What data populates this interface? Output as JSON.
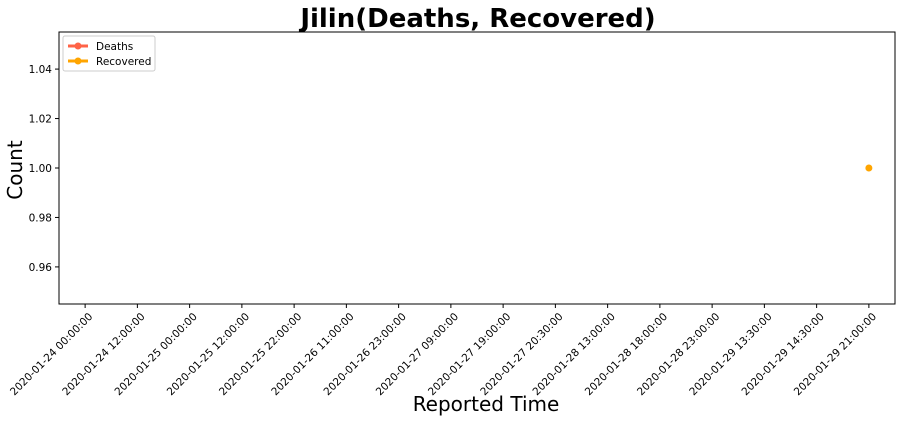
{
  "chart_data": {
    "type": "line",
    "title": "Jilin(Deaths, Recovered)",
    "xlabel": "Reported Time",
    "ylabel": "Count",
    "categories": [
      "2020-01-24 00:00:00",
      "2020-01-24 12:00:00",
      "2020-01-25 00:00:00",
      "2020-01-25 12:00:00",
      "2020-01-25 22:00:00",
      "2020-01-26 11:00:00",
      "2020-01-26 23:00:00",
      "2020-01-27 09:00:00",
      "2020-01-27 19:00:00",
      "2020-01-27 20:30:00",
      "2020-01-28 13:00:00",
      "2020-01-28 18:00:00",
      "2020-01-28 23:00:00",
      "2020-01-29 13:30:00",
      "2020-01-29 14:30:00",
      "2020-01-29 21:00:00"
    ],
    "series": [
      {
        "name": "Deaths",
        "color": "#ff6347",
        "values": [
          null,
          null,
          null,
          null,
          null,
          null,
          null,
          null,
          null,
          null,
          null,
          null,
          null,
          null,
          null,
          null
        ]
      },
      {
        "name": "Recovered",
        "color": "#ffa500",
        "values": [
          null,
          null,
          null,
          null,
          null,
          null,
          null,
          null,
          null,
          null,
          null,
          null,
          null,
          null,
          null,
          1
        ]
      }
    ],
    "ylim": [
      0.945,
      1.055
    ],
    "yticks": [
      0.96,
      0.98,
      1.0,
      1.02,
      1.04
    ],
    "ytick_labels": [
      "0.96",
      "0.98",
      "1.00",
      "1.02",
      "1.04"
    ],
    "xlim_index": [
      -0.5,
      15.5
    ],
    "grid": false,
    "legend_position": "upper-left"
  }
}
